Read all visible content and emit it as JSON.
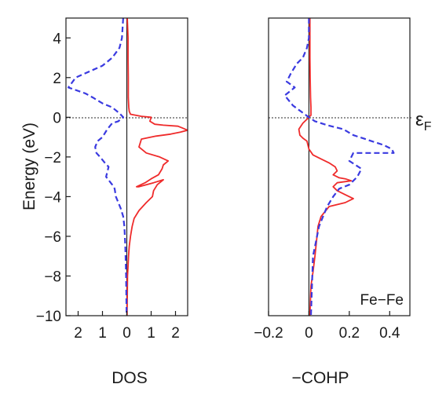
{
  "chart_data": [
    {
      "type": "line",
      "xlabel": "DOS",
      "ylabel": "Energy (eV)",
      "xlim": [
        2.5,
        -2.5
      ],
      "x_tick_labels": [
        "2",
        "1",
        "0",
        "1",
        "2"
      ],
      "ylim": [
        -10,
        5
      ],
      "y_tick_labels": [
        "4",
        "2",
        "0",
        "−2",
        "−4",
        "−6",
        "−8",
        "−10"
      ],
      "fermi_level": {
        "label": "ε",
        "subscript": "F",
        "energy": 0
      },
      "series": [
        {
          "color": "#ef2b2b",
          "style": "solid",
          "x": [
            -0.02,
            -0.05,
            -0.05,
            -0.06,
            -0.06,
            -0.08,
            -0.1,
            -0.15,
            -0.6,
            -1.0,
            -0.95,
            -1.15,
            -1.5,
            -2.1,
            -2.3,
            -2.5,
            -2.2,
            -1.8,
            -1.2,
            -0.6,
            -0.5,
            -0.8,
            -1.35,
            -1.7,
            -1.5,
            -1.45,
            -1.3,
            -1.0,
            -0.75,
            -0.4,
            -0.5,
            -1.1,
            -1.5,
            -1.25,
            -1.1,
            -1.05,
            -0.8,
            -0.5,
            -0.3,
            -0.22,
            -0.15,
            -0.1,
            -0.07,
            -0.05,
            -0.03,
            -0.02,
            -0.01
          ],
          "y": [
            5,
            4,
            3,
            2,
            1,
            0.5,
            0.3,
            0.15,
            0.05,
            0,
            -0.2,
            -0.35,
            -0.4,
            -0.45,
            -0.55,
            -0.65,
            -0.75,
            -0.85,
            -0.95,
            -1.1,
            -1.5,
            -1.8,
            -2.0,
            -2.2,
            -2.4,
            -2.6,
            -2.9,
            -3.1,
            -3.3,
            -3.5,
            -3.5,
            -3.3,
            -3.15,
            -3.4,
            -3.7,
            -4.0,
            -4.3,
            -4.7,
            -5.1,
            -5.5,
            -6,
            -6.5,
            -7,
            -7.5,
            -8,
            -9,
            -10
          ]
        },
        {
          "color": "#3a3ae0",
          "style": "dashed",
          "x": [
            0.15,
            0.2,
            0.3,
            0.6,
            0.8,
            1.0,
            2.1,
            2.4,
            1.7,
            1.4,
            1.0,
            0.6,
            0.3,
            0.15,
            0.35,
            0.6,
            0.8,
            1.0,
            1.2,
            1.3,
            1.25,
            1.1,
            0.9,
            0.75,
            0.85,
            0.6,
            0.5,
            0.45,
            0.35,
            0.25,
            0.15,
            0.1,
            0.06,
            0.03,
            0.01
          ],
          "y": [
            5,
            4,
            3.5,
            3,
            2.8,
            2.6,
            2,
            1.5,
            1.2,
            1.0,
            0.7,
            0.5,
            0.2,
            0,
            -0.2,
            -0.3,
            -0.6,
            -1.0,
            -1.2,
            -1.5,
            -1.8,
            -2.0,
            -2.3,
            -2.5,
            -3.0,
            -3.4,
            -3.6,
            -4.0,
            -4.3,
            -4.6,
            -5.0,
            -5.5,
            -6.5,
            -8,
            -10
          ]
        }
      ]
    },
    {
      "type": "line",
      "xlabel": "−COHP",
      "ylabel": "",
      "xlim": [
        -0.2,
        0.5
      ],
      "x_ticks": [
        -0.2,
        0,
        0.2,
        0.4
      ],
      "x_tick_labels": [
        "−0.2",
        "0",
        "0.2",
        "0.4"
      ],
      "ylim": [
        -10,
        5
      ],
      "annotation": "Fe−Fe",
      "fermi_level": {
        "label": "ε",
        "subscript": "F",
        "energy": 0
      },
      "series": [
        {
          "color": "#ef2b2b",
          "style": "solid",
          "x": [
            0.005,
            0.005,
            0.005,
            0.006,
            0.008,
            0.01,
            0.01,
            -0.01,
            -0.03,
            -0.05,
            -0.045,
            -0.03,
            -0.01,
            0.0,
            0.02,
            0.06,
            0.1,
            0.13,
            0.14,
            0.12,
            0.15,
            0.18,
            0.21,
            0.14,
            0.12,
            0.14,
            0.18,
            0.22,
            0.18,
            0.1,
            0.06,
            0.045,
            0.04,
            0.035,
            0.03,
            0.02,
            0.01,
            0.005
          ],
          "y": [
            5,
            4,
            3,
            2,
            1,
            0.5,
            0.1,
            -0.1,
            -0.3,
            -0.6,
            -0.9,
            -1.05,
            -1.2,
            -1.6,
            -1.9,
            -2.1,
            -2.3,
            -2.5,
            -2.7,
            -2.9,
            -3.05,
            -3.1,
            -3.2,
            -3.3,
            -3.5,
            -3.7,
            -3.9,
            -4.1,
            -4.3,
            -4.5,
            -5.0,
            -5.5,
            -6.0,
            -6.5,
            -7,
            -7.8,
            -8.5,
            -10
          ]
        },
        {
          "color": "#3a3ae0",
          "style": "dashed",
          "x": [
            0.0,
            0.0,
            -0.01,
            -0.03,
            -0.06,
            -0.09,
            -0.11,
            -0.07,
            -0.12,
            -0.08,
            -0.04,
            0.0,
            0.03,
            0.09,
            0.17,
            0.22,
            0.28,
            0.31,
            0.37,
            0.41,
            0.42,
            0.36,
            0.3,
            0.22,
            0.2,
            0.26,
            0.24,
            0.2,
            0.15,
            0.12,
            0.09,
            0.05,
            0.02,
            0.01
          ],
          "y": [
            5,
            4,
            3.5,
            3,
            2.7,
            2.2,
            1.8,
            1.5,
            1.1,
            0.6,
            0.3,
            0,
            -0.2,
            -0.4,
            -0.6,
            -0.9,
            -1.1,
            -1.2,
            -1.4,
            -1.6,
            -1.8,
            -1.8,
            -1.8,
            -1.8,
            -2.2,
            -2.6,
            -3.0,
            -3.4,
            -3.6,
            -4.0,
            -4.5,
            -5.5,
            -7,
            -10
          ]
        }
      ]
    }
  ]
}
